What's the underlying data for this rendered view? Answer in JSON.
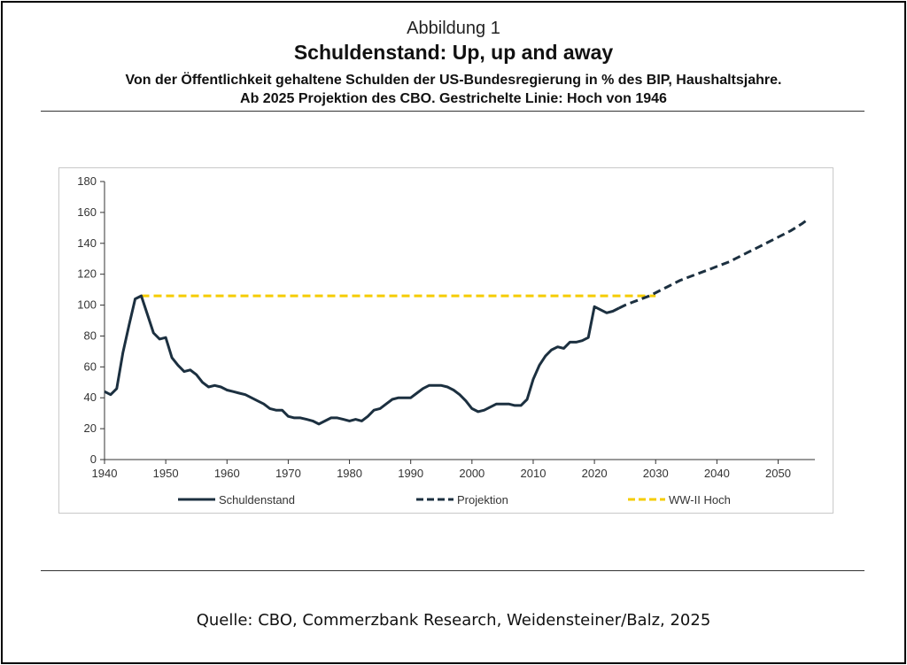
{
  "header": {
    "figure_label": "Abbildung 1",
    "title": "Schuldenstand: Up, up and away",
    "subtitle_line1": "Von der Öffentlichkeit gehaltene Schulden der US-Bundesregierung in % des BIP, Haushaltsjahre.",
    "subtitle_line2": "Ab 2025 Projektion des CBO. Gestrichelte Linie: Hoch von 1946"
  },
  "source": "Quelle: CBO, Commerzbank Research, Weidensteiner/Balz, 2025",
  "colors": {
    "series_main": "#1c3040",
    "series_projection": "#1c3040",
    "series_high": "#f5cc00",
    "axis": "#333333"
  },
  "chart_data": {
    "type": "line",
    "title": "",
    "xlabel": "",
    "ylabel": "",
    "xlim": [
      1940,
      2056
    ],
    "ylim": [
      0,
      180
    ],
    "x_ticks": [
      "1940",
      "1950",
      "1960",
      "1970",
      "1980",
      "1990",
      "2000",
      "2010",
      "2020",
      "2030",
      "2040",
      "2050"
    ],
    "y_ticks": [
      "0",
      "20",
      "40",
      "60",
      "80",
      "100",
      "120",
      "140",
      "160",
      "180"
    ],
    "grid": false,
    "legend_position": "bottom",
    "series": [
      {
        "name": "Schuldenstand",
        "style": "solid",
        "x": [
          1940,
          1941,
          1942,
          1943,
          1944,
          1945,
          1946,
          1947,
          1948,
          1949,
          1950,
          1951,
          1952,
          1953,
          1954,
          1955,
          1956,
          1957,
          1958,
          1959,
          1960,
          1961,
          1962,
          1963,
          1964,
          1965,
          1966,
          1967,
          1968,
          1969,
          1970,
          1971,
          1972,
          1973,
          1974,
          1975,
          1976,
          1977,
          1978,
          1979,
          1980,
          1981,
          1982,
          1983,
          1984,
          1985,
          1986,
          1987,
          1988,
          1989,
          1990,
          1991,
          1992,
          1993,
          1994,
          1995,
          1996,
          1997,
          1998,
          1999,
          2000,
          2001,
          2002,
          2003,
          2004,
          2005,
          2006,
          2007,
          2008,
          2009,
          2010,
          2011,
          2012,
          2013,
          2014,
          2015,
          2016,
          2017,
          2018,
          2019,
          2020,
          2021,
          2022,
          2023,
          2024
        ],
        "values": [
          44,
          42,
          46,
          69,
          87,
          104,
          106,
          94,
          82,
          78,
          79,
          66,
          61,
          57,
          58,
          55,
          50,
          47,
          48,
          47,
          45,
          44,
          43,
          42,
          40,
          38,
          36,
          33,
          32,
          32,
          28,
          27,
          27,
          26,
          25,
          23,
          25,
          27,
          27,
          26,
          25,
          26,
          25,
          28,
          32,
          33,
          36,
          39,
          40,
          40,
          40,
          43,
          46,
          48,
          48,
          48,
          47,
          45,
          42,
          38,
          33,
          31,
          32,
          34,
          36,
          36,
          36,
          35,
          35,
          39,
          52,
          61,
          67,
          71,
          73,
          72,
          76,
          76,
          77,
          79,
          99,
          97,
          95,
          96,
          98
        ]
      },
      {
        "name": "Projektion",
        "style": "dashed",
        "x": [
          2024,
          2025,
          2026,
          2027,
          2028,
          2029,
          2030,
          2031,
          2032,
          2033,
          2034,
          2035,
          2036,
          2037,
          2038,
          2039,
          2040,
          2041,
          2042,
          2043,
          2044,
          2045,
          2046,
          2047,
          2048,
          2049,
          2050,
          2051,
          2052,
          2053,
          2054,
          2055
        ],
        "values": [
          98,
          100,
          101.5,
          103,
          104.5,
          106,
          108,
          110,
          112,
          114,
          116,
          117.5,
          119,
          120.5,
          122,
          123.5,
          125,
          126.5,
          128,
          130,
          132,
          134,
          136,
          138,
          140,
          142,
          144,
          146,
          148,
          150.5,
          153,
          156
        ]
      },
      {
        "name": "WW-II Hoch",
        "style": "dashed",
        "x": [
          1946,
          2030
        ],
        "values": [
          106,
          106
        ]
      }
    ]
  }
}
